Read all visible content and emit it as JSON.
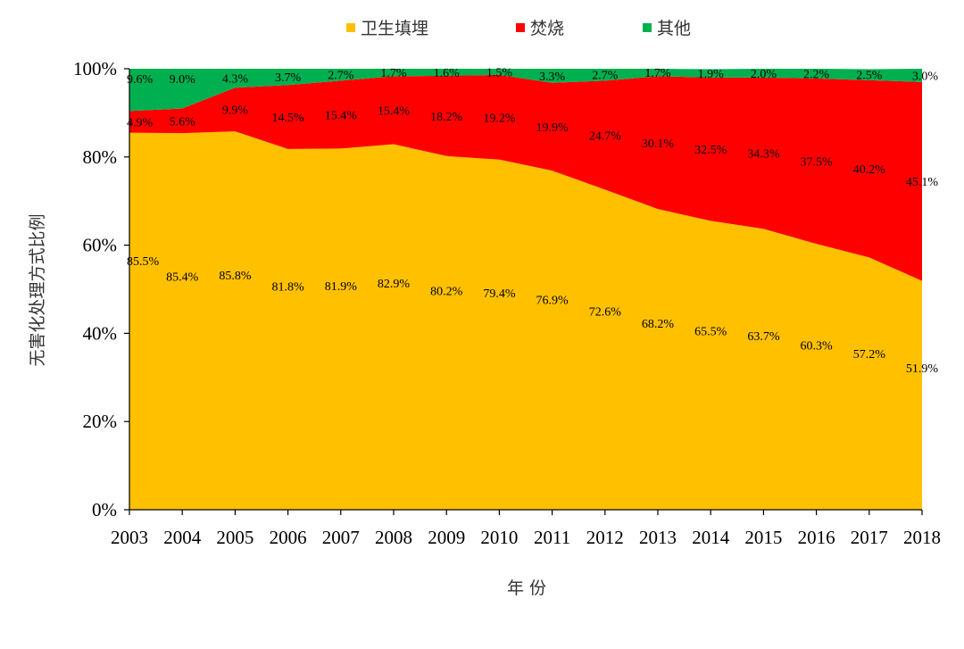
{
  "chart_data": {
    "type": "area",
    "stacked": true,
    "xlabel": "年 份",
    "ylabel": "无害化处理方式比例",
    "ylim": [
      0,
      100
    ],
    "y_ticks": [
      "0%",
      "20%",
      "40%",
      "60%",
      "80%",
      "100%"
    ],
    "y_tick_values": [
      0,
      20,
      40,
      60,
      80,
      100
    ],
    "legend_position": "top-center",
    "grid": false,
    "categories": [
      "2003",
      "2004",
      "2005",
      "2006",
      "2007",
      "2008",
      "2009",
      "2010",
      "2011",
      "2012",
      "2013",
      "2014",
      "2015",
      "2016",
      "2017",
      "2018"
    ],
    "series": [
      {
        "name": "卫生填埋",
        "color": "#FFC000",
        "values": [
          85.5,
          85.4,
          85.8,
          81.8,
          81.9,
          82.9,
          80.2,
          79.4,
          76.9,
          72.6,
          68.2,
          65.5,
          63.7,
          60.3,
          57.2,
          51.9
        ],
        "labels": [
          "85.5%",
          "85.4%",
          "85.8%",
          "81.8%",
          "81.9%",
          "82.9%",
          "80.2%",
          "79.4%",
          "76.9%",
          "72.6%",
          "68.2%",
          "65.5%",
          "63.7%",
          "60.3%",
          "57.2%",
          "51.9%"
        ]
      },
      {
        "name": "焚烧",
        "color": "#FF0000",
        "values": [
          4.9,
          5.6,
          9.9,
          14.5,
          15.4,
          15.4,
          18.2,
          19.2,
          19.9,
          24.7,
          30.1,
          32.5,
          34.3,
          37.5,
          40.2,
          45.1
        ],
        "labels": [
          "4.9%",
          "5.6%",
          "9.9%",
          "14.5%",
          "15.4%",
          "15.4%",
          "18.2%",
          "19.2%",
          "19.9%",
          "24.7%",
          "30.1%",
          "32.5%",
          "34.3%",
          "37.5%",
          "40.2%",
          "45.1%"
        ]
      },
      {
        "name": "其他",
        "color": "#00B050",
        "values": [
          9.6,
          9.0,
          4.3,
          3.7,
          2.7,
          1.7,
          1.6,
          1.5,
          3.3,
          2.7,
          1.7,
          1.9,
          2.0,
          2.2,
          2.5,
          3.0
        ],
        "labels": [
          "9.6%",
          "9.0%",
          "4.3%",
          "3.7%",
          "2.7%",
          "1.7%",
          "1.6%",
          "1.5%",
          "3.3%",
          "2.7%",
          "1.7%",
          "1.9%",
          "2.0%",
          "2.2%",
          "2.5%",
          "3.0%"
        ]
      }
    ]
  }
}
